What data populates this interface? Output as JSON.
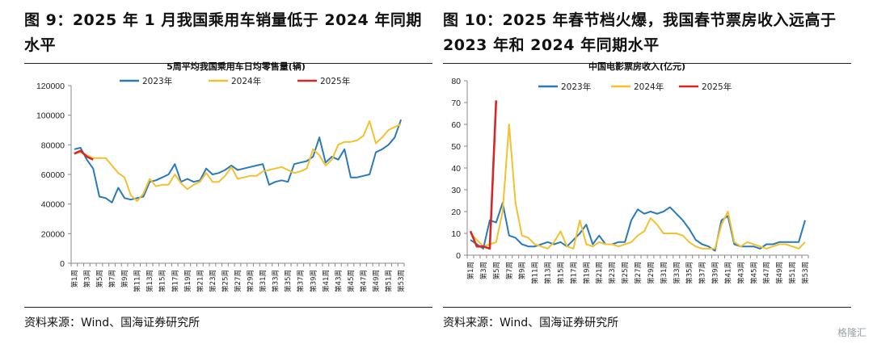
{
  "left": {
    "figure_title": "图 9：2025 年 1 月我国乘用车销量低于 2024 年同期水平",
    "source": "资料来源：Wind、国海证券研究所"
  },
  "right": {
    "figure_title": "图 10：2025 年春节档火爆，我国春节票房收入远高于 2023 年和 2024 年同期水平",
    "source": "资料来源：Wind、国海证券研究所"
  },
  "watermark": "格隆汇",
  "chart_data": [
    {
      "type": "line",
      "title": "5周平均我国乘用车日均零售量(辆)",
      "ylim": [
        0,
        120000
      ],
      "yticks": [
        0,
        20000,
        40000,
        60000,
        80000,
        100000,
        120000
      ],
      "week_count": 53,
      "x_tick_labels": [
        "第1周",
        "第3周",
        "第5周",
        "第7周",
        "第9周",
        "第11周",
        "第13周",
        "第15周",
        "第17周",
        "第19周",
        "第21周",
        "第23周",
        "第25周",
        "第27周",
        "第29周",
        "第31周",
        "第33周",
        "第35周",
        "第37周",
        "第39周",
        "第41周",
        "第43周",
        "第45周",
        "第47周",
        "第49周",
        "第51周",
        "第53周"
      ],
      "legend_position": "top",
      "series": [
        {
          "name": "2023年",
          "color": "#2a7ab8",
          "values": [
            77000,
            78000,
            70000,
            64000,
            45000,
            44000,
            41000,
            51000,
            44000,
            43000,
            44000,
            45000,
            55000,
            56000,
            58000,
            60000,
            67000,
            55000,
            57000,
            55000,
            56000,
            64000,
            60000,
            61000,
            63000,
            66000,
            63000,
            64000,
            65000,
            66000,
            67000,
            53000,
            55000,
            56000,
            55000,
            67000,
            68000,
            69000,
            72000,
            85000,
            68000,
            72000,
            70000,
            77000,
            58000,
            58000,
            59000,
            60000,
            75000,
            77000,
            80000,
            85000,
            97000
          ]
        },
        {
          "name": "2024年",
          "color": "#f2c12e",
          "values": [
            74000,
            75000,
            73000,
            71000,
            71000,
            71000,
            66000,
            61000,
            58000,
            46000,
            42000,
            47000,
            57000,
            52000,
            53000,
            53000,
            60000,
            54000,
            50000,
            53000,
            55000,
            61000,
            55000,
            55000,
            59000,
            65000,
            57000,
            58000,
            59000,
            59000,
            62000,
            63000,
            64000,
            65000,
            63000,
            61000,
            62000,
            64000,
            77000,
            73000,
            66000,
            70000,
            80000,
            82000,
            82000,
            83000,
            86000,
            96000,
            81000,
            85000,
            90000,
            92000,
            94000
          ]
        },
        {
          "name": "2025年",
          "color": "#d62728",
          "values": [
            74000,
            76000,
            72000,
            70000
          ]
        }
      ]
    },
    {
      "type": "line",
      "title": "中国电影票房收入(亿元)",
      "ylim": [
        0,
        80
      ],
      "yticks": [
        0,
        10,
        20,
        30,
        40,
        50,
        60,
        70,
        80
      ],
      "week_count": 53,
      "x_tick_labels": [
        "第1周",
        "第3周",
        "第5周",
        "第7周",
        "第9周",
        "第11周",
        "第13周",
        "第15周",
        "第17周",
        "第19周",
        "第21周",
        "第23周",
        "第25周",
        "第27周",
        "第29周",
        "第31周",
        "第33周",
        "第35周",
        "第37周",
        "第39周",
        "第41周",
        "第43周",
        "第45周",
        "第47周",
        "第49周",
        "第51周",
        "第53周"
      ],
      "legend_position": "top",
      "series": [
        {
          "name": "2023年",
          "color": "#2a7ab8",
          "values": [
            7,
            5,
            3,
            16,
            15,
            24,
            9,
            8,
            5,
            4,
            4,
            5,
            6,
            5,
            6,
            4,
            7,
            10,
            14,
            5,
            9,
            5,
            5,
            6,
            6,
            16,
            21,
            19,
            20,
            19,
            20,
            22,
            19,
            16,
            12,
            7,
            5,
            4,
            2,
            16,
            18,
            5,
            4,
            4,
            4,
            3,
            5,
            5,
            6,
            6,
            6,
            6,
            16
          ]
        },
        {
          "name": "2024年",
          "color": "#f2c12e",
          "values": [
            10,
            7,
            4,
            5,
            6,
            20,
            60,
            24,
            9,
            8,
            5,
            4,
            3,
            6,
            11,
            4,
            3,
            16,
            5,
            4,
            6,
            5,
            5,
            4,
            5,
            6,
            9,
            11,
            17,
            14,
            10,
            10,
            10,
            9,
            6,
            4,
            3,
            3,
            3,
            14,
            20,
            6,
            4,
            6,
            5,
            4,
            3,
            4,
            5,
            5,
            4,
            3,
            6
          ]
        },
        {
          "name": "2025年",
          "color": "#d62728",
          "values": [
            11,
            4,
            4,
            3,
            71
          ]
        }
      ]
    }
  ]
}
